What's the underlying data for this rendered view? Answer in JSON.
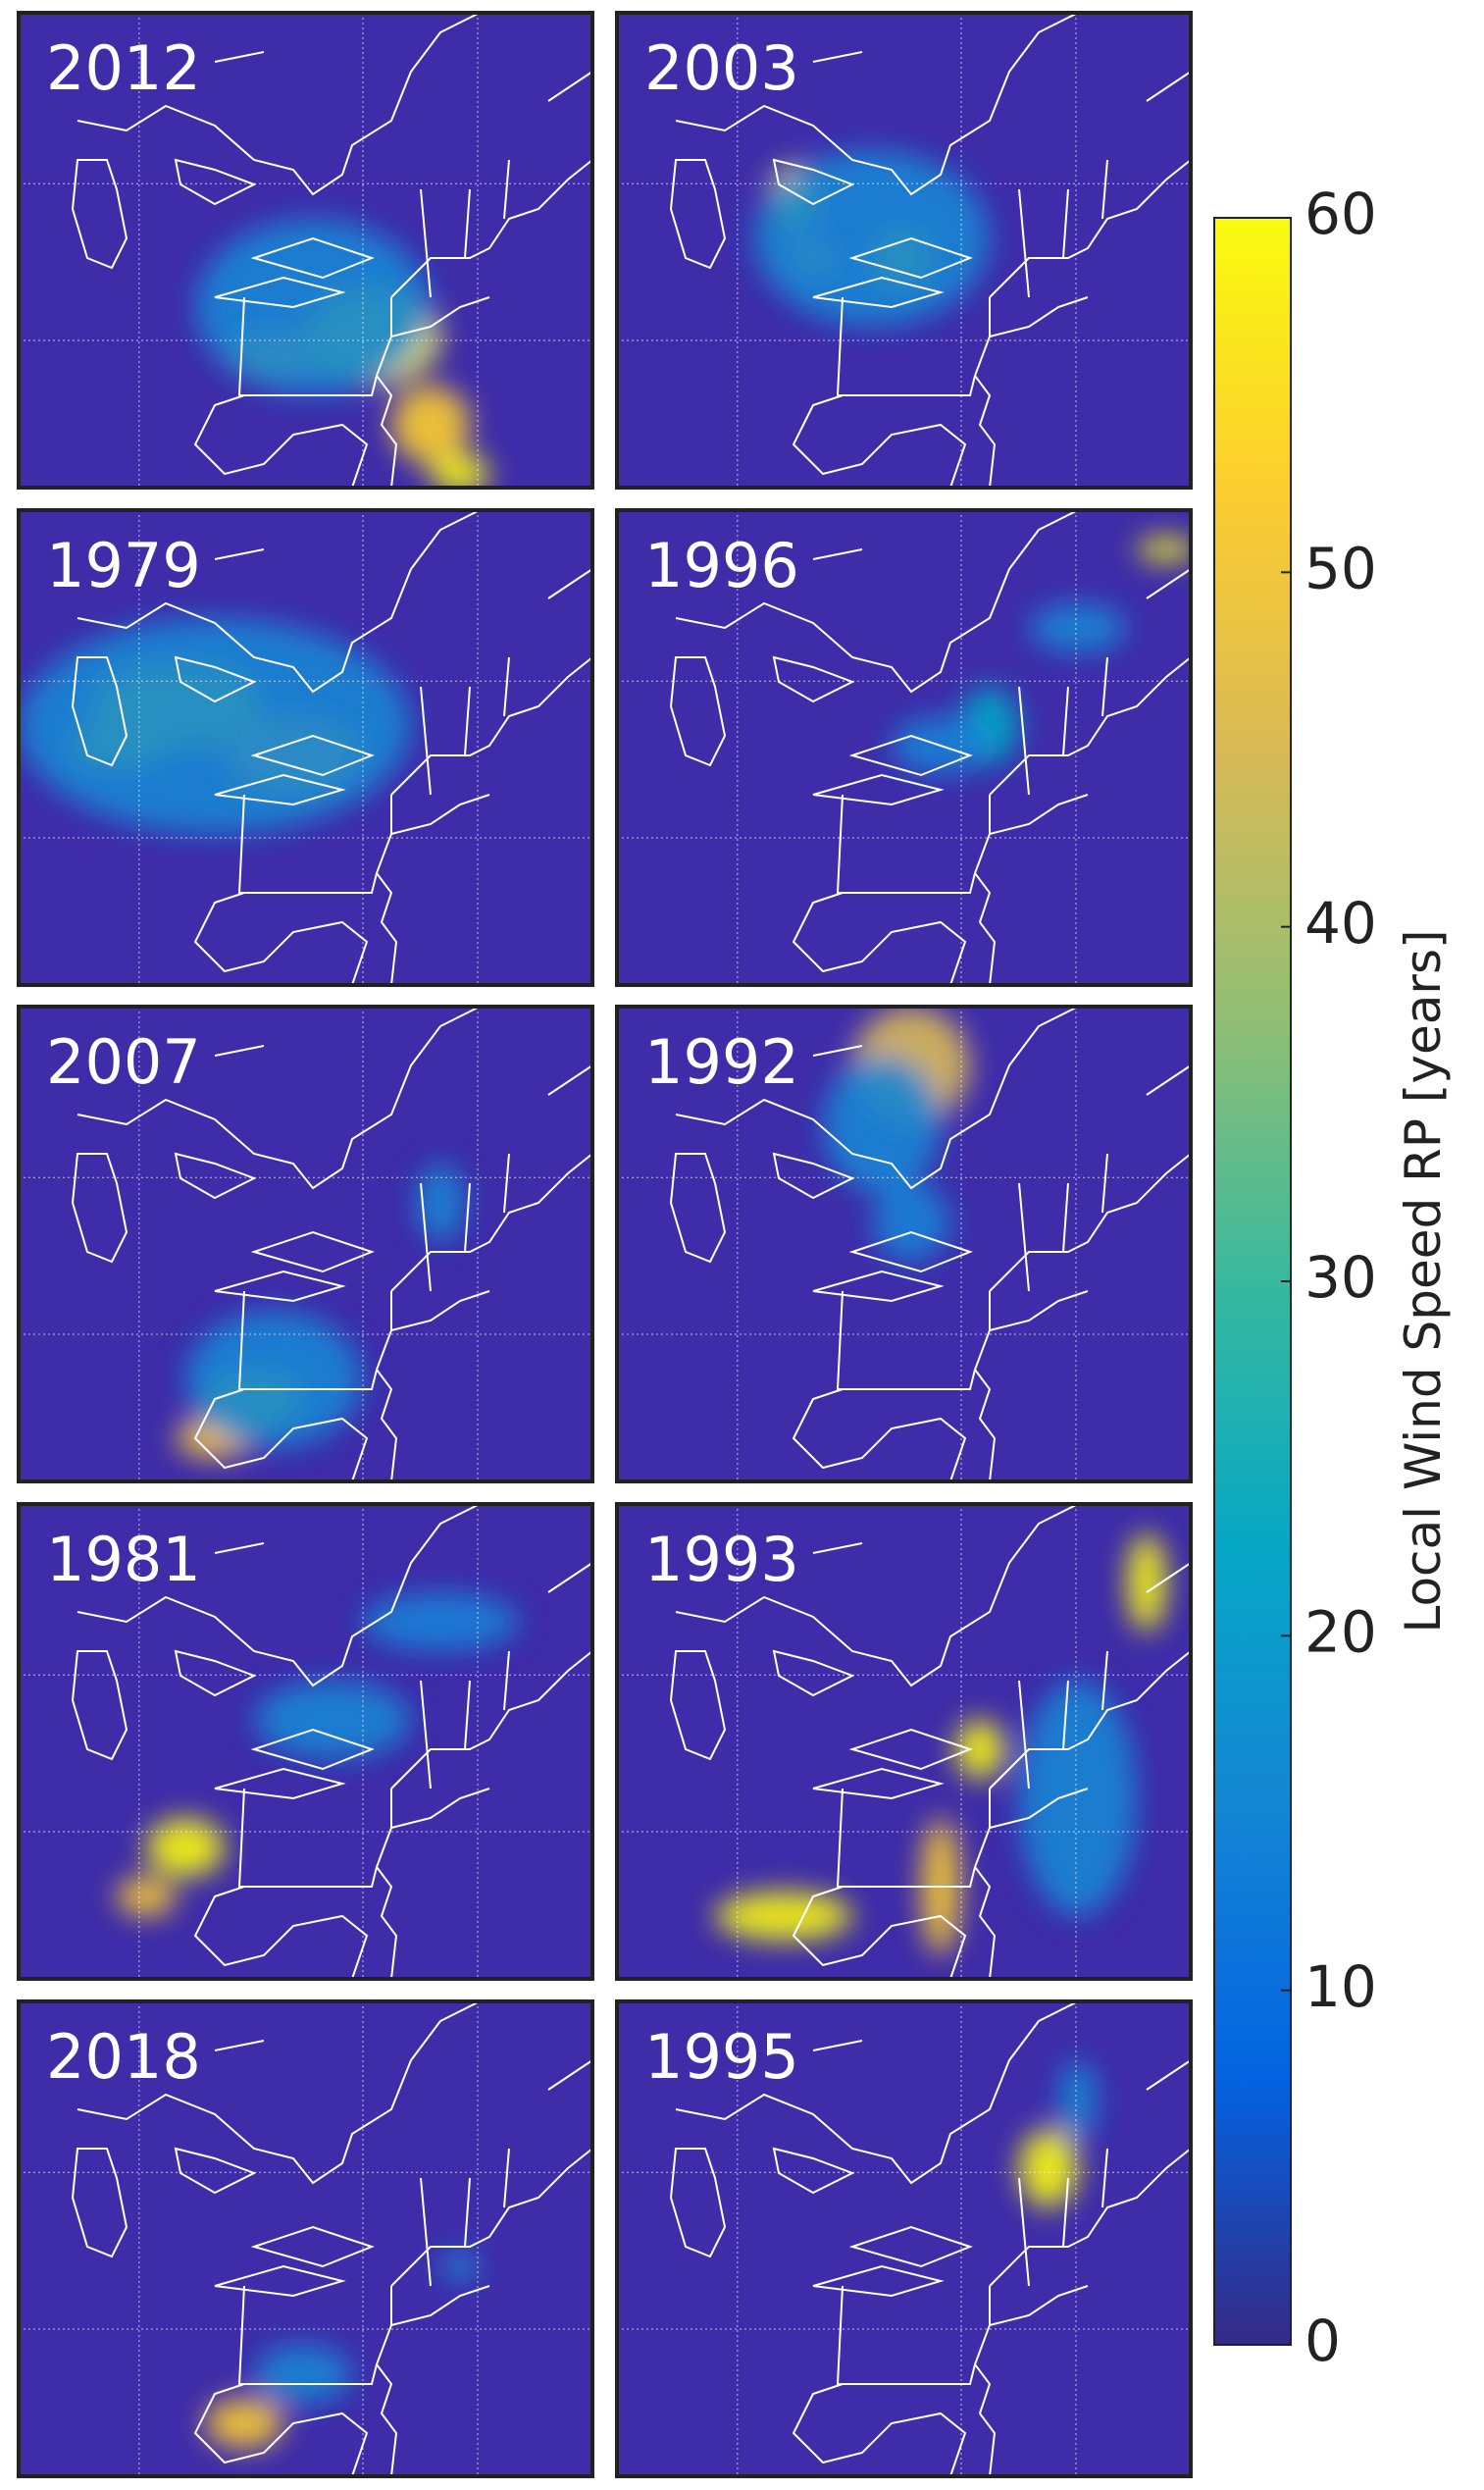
{
  "chart_data": {
    "type": "map-grid",
    "panels": [
      "2012",
      "2003",
      "1979",
      "1996",
      "2007",
      "1992",
      "1981",
      "1993",
      "2018",
      "1995"
    ],
    "colorbar": {
      "label": "Local Wind Speed RP [years]",
      "lim": [
        0,
        60
      ],
      "ticks": [
        0,
        10,
        20,
        30,
        40,
        50,
        60
      ]
    }
  }
}
